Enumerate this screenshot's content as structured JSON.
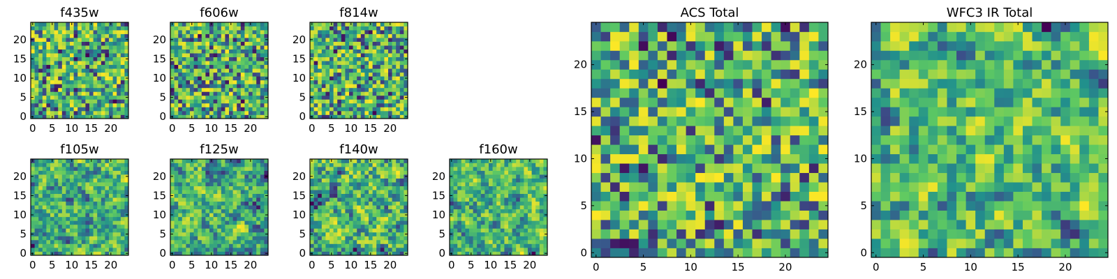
{
  "colormap": [
    "#440154",
    "#3b528b",
    "#21918c",
    "#5ec962",
    "#fde725"
  ],
  "chart_data": [
    {
      "type": "heatmap",
      "title": "f435w",
      "grid": 25,
      "x_ticks": [
        0,
        5,
        10,
        15,
        20
      ],
      "y_ticks": [
        0,
        5,
        10,
        15,
        20
      ],
      "xlim": [
        0,
        24
      ],
      "ylim": [
        0,
        24
      ],
      "smooth": 0,
      "seed": 11
    },
    {
      "type": "heatmap",
      "title": "f606w",
      "grid": 25,
      "x_ticks": [
        0,
        5,
        10,
        15,
        20
      ],
      "y_ticks": [
        0,
        5,
        10,
        15,
        20
      ],
      "xlim": [
        0,
        24
      ],
      "ylim": [
        0,
        24
      ],
      "smooth": 0,
      "seed": 23
    },
    {
      "type": "heatmap",
      "title": "f814w",
      "grid": 25,
      "x_ticks": [
        0,
        5,
        10,
        15,
        20
      ],
      "y_ticks": [
        0,
        5,
        10,
        15,
        20
      ],
      "xlim": [
        0,
        24
      ],
      "ylim": [
        0,
        24
      ],
      "smooth": 0,
      "seed": 37
    },
    {
      "type": "heatmap",
      "title": "f105w",
      "grid": 25,
      "x_ticks": [
        0,
        5,
        10,
        15,
        20
      ],
      "y_ticks": [
        0,
        5,
        10,
        15,
        20
      ],
      "xlim": [
        0,
        24
      ],
      "ylim": [
        0,
        24
      ],
      "smooth": 1,
      "seed": 41
    },
    {
      "type": "heatmap",
      "title": "f125w",
      "grid": 25,
      "x_ticks": [
        0,
        5,
        10,
        15,
        20
      ],
      "y_ticks": [
        0,
        5,
        10,
        15,
        20
      ],
      "xlim": [
        0,
        24
      ],
      "ylim": [
        0,
        24
      ],
      "smooth": 1,
      "seed": 53
    },
    {
      "type": "heatmap",
      "title": "f140w",
      "grid": 25,
      "x_ticks": [
        0,
        5,
        10,
        15,
        20
      ],
      "y_ticks": [
        0,
        5,
        10,
        15,
        20
      ],
      "xlim": [
        0,
        24
      ],
      "ylim": [
        0,
        24
      ],
      "smooth": 1,
      "seed": 67
    },
    {
      "type": "heatmap",
      "title": "f160w",
      "grid": 25,
      "x_ticks": [
        0,
        5,
        10,
        15,
        20
      ],
      "y_ticks": [
        0,
        5,
        10,
        15,
        20
      ],
      "xlim": [
        0,
        24
      ],
      "ylim": [
        0,
        24
      ],
      "smooth": 1,
      "seed": 79
    },
    {
      "type": "heatmap",
      "title": "ACS Total",
      "grid": 25,
      "x_ticks": [
        0,
        5,
        10,
        15,
        20
      ],
      "y_ticks": [
        0,
        5,
        10,
        15,
        20
      ],
      "xlim": [
        0,
        24
      ],
      "ylim": [
        0,
        24
      ],
      "smooth": 0,
      "seed": 97
    },
    {
      "type": "heatmap",
      "title": "WFC3 IR Total",
      "grid": 25,
      "x_ticks": [
        0,
        5,
        10,
        15,
        20
      ],
      "y_ticks": [
        0,
        5,
        10,
        15,
        20
      ],
      "xlim": [
        0,
        24
      ],
      "ylim": [
        0,
        24
      ],
      "smooth": 1,
      "seed": 113
    }
  ]
}
